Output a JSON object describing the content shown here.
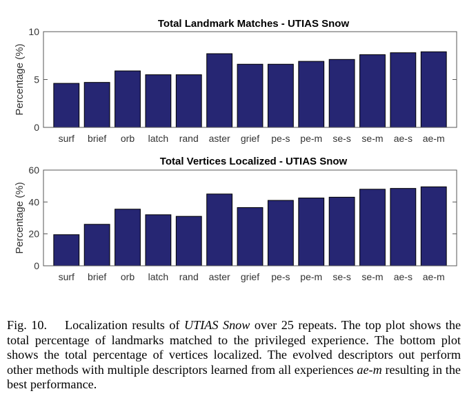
{
  "chart_data": [
    {
      "type": "bar",
      "title": "Total Landmark Matches - UTIAS Snow",
      "xlabel": "",
      "ylabel": "Percentage (%)",
      "ylim": [
        0,
        10
      ],
      "yticks": [
        0,
        5,
        10
      ],
      "grid": false,
      "categories": [
        "surf",
        "brief",
        "orb",
        "latch",
        "rand",
        "aster",
        "grief",
        "pe-s",
        "pe-m",
        "se-s",
        "se-m",
        "ae-s",
        "ae-m"
      ],
      "values": [
        4.6,
        4.7,
        5.9,
        5.5,
        5.5,
        7.7,
        6.6,
        6.6,
        6.9,
        7.1,
        7.6,
        7.8,
        7.9
      ],
      "bar_color": "#262673"
    },
    {
      "type": "bar",
      "title": "Total Vertices Localized - UTIAS Snow",
      "xlabel": "",
      "ylabel": "Percentage (%)",
      "ylim": [
        0,
        60
      ],
      "yticks": [
        0,
        20,
        40,
        60
      ],
      "grid": false,
      "categories": [
        "surf",
        "brief",
        "orb",
        "latch",
        "rand",
        "aster",
        "grief",
        "pe-s",
        "pe-m",
        "se-s",
        "se-m",
        "ae-s",
        "ae-m"
      ],
      "values": [
        19.5,
        26,
        35.5,
        32,
        31,
        45,
        36.5,
        41,
        42.5,
        43,
        48,
        48.5,
        49.5
      ],
      "bar_color": "#262673"
    }
  ],
  "caption": {
    "fig_label": "Fig. 10.",
    "part1": "Localization results of ",
    "dataset": "UTIAS Snow",
    "part2": " over 25 repeats. The top plot shows the total percentage of landmarks matched to the privileged experience. The bottom plot shows the total percentage of vertices localized. The evolved descriptors out perform other methods with multiple descriptors learned from all experiences ",
    "method": "ae-m",
    "part3": " resulting in the best performance."
  }
}
